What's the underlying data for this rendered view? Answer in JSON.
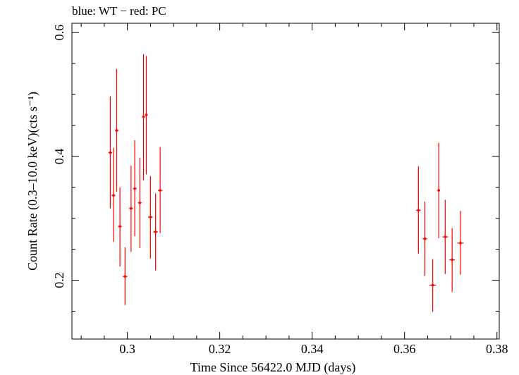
{
  "chart_data": {
    "type": "scatter",
    "title": "blue: WT − red: PC",
    "xlabel": "Time Since 56422.0 MJD (days)",
    "ylabel": "Count Rate (0.3–10.0 keV)(cts s⁻¹)",
    "xlim": [
      0.288,
      0.3805
    ],
    "ylim": [
      0.105,
      0.615
    ],
    "x_ticks": [
      {
        "value": 0.3,
        "label": "0.3"
      },
      {
        "value": 0.32,
        "label": "0.32"
      },
      {
        "value": 0.34,
        "label": "0.34"
      },
      {
        "value": 0.36,
        "label": "0.36"
      },
      {
        "value": 0.38,
        "label": "0.38"
      }
    ],
    "y_ticks": [
      {
        "value": 0.2,
        "label": "0.2"
      },
      {
        "value": 0.4,
        "label": "0.4"
      },
      {
        "value": 0.6,
        "label": "0.6"
      }
    ],
    "x_minor_step": 0.005,
    "y_minor_step": 0.05,
    "grid": false,
    "colors": {
      "PC": "#ff0000",
      "WT": "#0000ff"
    },
    "series": [
      {
        "name": "PC",
        "points": [
          {
            "x": 0.2963,
            "y": 0.406,
            "ylo": 0.316,
            "yhi": 0.497,
            "xerr": 0.0004
          },
          {
            "x": 0.297,
            "y": 0.337,
            "ylo": 0.262,
            "yhi": 0.414,
            "xerr": 0.0004
          },
          {
            "x": 0.2977,
            "y": 0.442,
            "ylo": 0.343,
            "yhi": 0.541,
            "xerr": 0.0004
          },
          {
            "x": 0.2984,
            "y": 0.287,
            "ylo": 0.222,
            "yhi": 0.35,
            "xerr": 0.0004
          },
          {
            "x": 0.2995,
            "y": 0.206,
            "ylo": 0.16,
            "yhi": 0.253,
            "xerr": 0.0005
          },
          {
            "x": 0.3008,
            "y": 0.316,
            "ylo": 0.246,
            "yhi": 0.385,
            "xerr": 0.0004
          },
          {
            "x": 0.3016,
            "y": 0.348,
            "ylo": 0.271,
            "yhi": 0.426,
            "xerr": 0.0004
          },
          {
            "x": 0.3027,
            "y": 0.325,
            "ylo": 0.252,
            "yhi": 0.398,
            "xerr": 0.0004
          },
          {
            "x": 0.3035,
            "y": 0.464,
            "ylo": 0.361,
            "yhi": 0.565,
            "xerr": 0.0003
          },
          {
            "x": 0.3041,
            "y": 0.467,
            "ylo": 0.371,
            "yhi": 0.562,
            "xerr": 0.0003
          },
          {
            "x": 0.305,
            "y": 0.302,
            "ylo": 0.235,
            "yhi": 0.368,
            "xerr": 0.0005
          },
          {
            "x": 0.3061,
            "y": 0.278,
            "ylo": 0.216,
            "yhi": 0.34,
            "xerr": 0.0005
          },
          {
            "x": 0.3071,
            "y": 0.345,
            "ylo": 0.276,
            "yhi": 0.415,
            "xerr": 0.0005
          },
          {
            "x": 0.363,
            "y": 0.313,
            "ylo": 0.243,
            "yhi": 0.384,
            "xerr": 0.0005
          },
          {
            "x": 0.3644,
            "y": 0.267,
            "ylo": 0.207,
            "yhi": 0.327,
            "xerr": 0.0005
          },
          {
            "x": 0.3661,
            "y": 0.192,
            "ylo": 0.149,
            "yhi": 0.234,
            "xerr": 0.0007
          },
          {
            "x": 0.3674,
            "y": 0.345,
            "ylo": 0.268,
            "yhi": 0.422,
            "xerr": 0.0003
          },
          {
            "x": 0.3688,
            "y": 0.27,
            "ylo": 0.21,
            "yhi": 0.33,
            "xerr": 0.0006
          },
          {
            "x": 0.3703,
            "y": 0.233,
            "ylo": 0.181,
            "yhi": 0.284,
            "xerr": 0.0006
          },
          {
            "x": 0.3721,
            "y": 0.26,
            "ylo": 0.209,
            "yhi": 0.312,
            "xerr": 0.0007
          }
        ]
      }
    ]
  }
}
